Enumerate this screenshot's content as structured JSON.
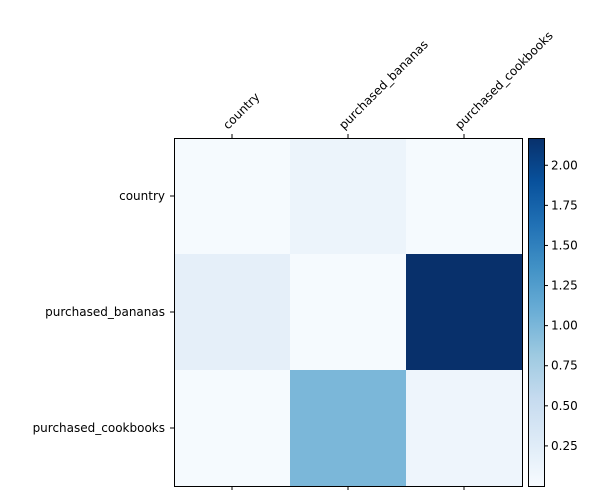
{
  "chart_data": {
    "type": "heatmap",
    "title": "",
    "xlabel": "",
    "ylabel": "",
    "x_labels": [
      "country",
      "purchased_bananas",
      "purchased_cookbooks"
    ],
    "y_labels": [
      "country",
      "purchased_bananas",
      "purchased_cookbooks"
    ],
    "values": [
      [
        0.02,
        0.12,
        0.02
      ],
      [
        0.2,
        0.02,
        2.17
      ],
      [
        0.02,
        1.0,
        0.1
      ]
    ],
    "colormap": "Blues",
    "colorbar": {
      "range": [
        0.0,
        2.17
      ],
      "ticks": [
        0.25,
        0.5,
        0.75,
        1.0,
        1.25,
        1.5,
        1.75,
        2.0
      ],
      "tick_labels": [
        "0.25",
        "0.50",
        "0.75",
        "1.00",
        "1.25",
        "1.50",
        "1.75",
        "2.00"
      ]
    },
    "x_tick_position": "top",
    "grid": false
  }
}
